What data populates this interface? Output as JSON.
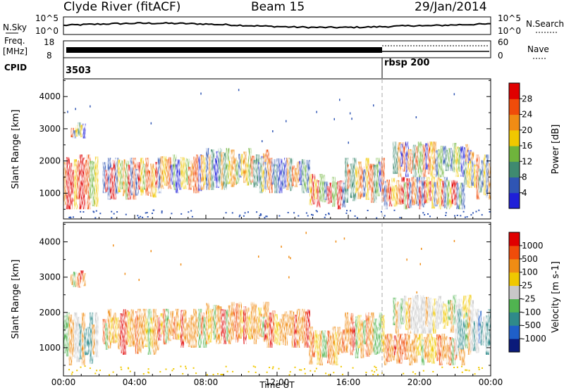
{
  "header": {
    "station": "Clyde River (fitACF)",
    "beam": "Beam 15",
    "date": "29/Jan/2014"
  },
  "status_panels": {
    "nsky_label": "N.Sky",
    "nsky_ticks": [
      "10^5",
      "10^0"
    ],
    "nsearch_label": "N.Search",
    "nsearch_ticks": [
      "10^5",
      "10^0"
    ],
    "freq_label": "Freq.",
    "freq_unit": "[MHz]",
    "freq_ticks": [
      "18",
      "8"
    ],
    "nave_label": "Nave",
    "nave_ticks": [
      "60",
      "0"
    ],
    "cpid_label": "CPID",
    "cpid_values": [
      {
        "time": 0,
        "label": "3503"
      },
      {
        "time": 18,
        "label": "rbsp 200"
      }
    ]
  },
  "chart_data": [
    {
      "type": "heatmap",
      "name": "power",
      "ylabel": "Slant Range [km]",
      "yticks": [
        1000,
        2000,
        3000,
        4000
      ],
      "ylim": [
        200,
        4550
      ],
      "xlim": [
        0,
        24
      ],
      "colorbar": {
        "label": "Power [dB]",
        "ticks": [
          "4",
          "8",
          "12",
          "16",
          "20",
          "24",
          "28"
        ],
        "colors": [
          "#1f1fd8",
          "#2f55b4",
          "#3f8a70",
          "#6fb43c",
          "#f0c800",
          "#f08c14",
          "#f04c0a",
          "#e00000"
        ]
      },
      "echo_regions": [
        {
          "t0": 0.0,
          "t1": 1.9,
          "r0": 500,
          "r1": 2200,
          "c": "red"
        },
        {
          "t0": 0.4,
          "t1": 1.2,
          "r0": 2700,
          "r1": 3200,
          "c": "mixed"
        },
        {
          "t0": 2.2,
          "t1": 5.3,
          "r0": 800,
          "r1": 2100,
          "c": "red"
        },
        {
          "t0": 5.3,
          "t1": 8.0,
          "r0": 1000,
          "r1": 2200,
          "c": "mixed"
        },
        {
          "t0": 8.0,
          "t1": 11.5,
          "r0": 1100,
          "r1": 2400,
          "c": "mixed"
        },
        {
          "t0": 11.0,
          "t1": 13.8,
          "r0": 1000,
          "r1": 2100,
          "c": "mixed"
        },
        {
          "t0": 13.8,
          "t1": 15.8,
          "r0": 500,
          "r1": 1600,
          "c": "red"
        },
        {
          "t0": 15.8,
          "t1": 18.0,
          "r0": 700,
          "r1": 2100,
          "c": "mixed"
        },
        {
          "t0": 18.0,
          "t1": 22.5,
          "r0": 500,
          "r1": 1500,
          "c": "red"
        },
        {
          "t0": 18.5,
          "t1": 23.0,
          "r0": 1500,
          "r1": 2600,
          "c": "mixed"
        },
        {
          "t0": 22.5,
          "t1": 24.0,
          "r0": 800,
          "r1": 2200,
          "c": "mixed"
        }
      ]
    },
    {
      "type": "heatmap",
      "name": "velocity",
      "ylabel": "Slant Range [km]",
      "yticks": [
        1000,
        2000,
        3000,
        4000
      ],
      "ylim": [
        200,
        4550
      ],
      "xlim": [
        0,
        24
      ],
      "xticks": [
        "00:00",
        "04:00",
        "08:00",
        "12:00",
        "16:00",
        "20:00",
        "00:00"
      ],
      "xlabel": "Time UT",
      "colorbar": {
        "label": "Velocity [m s-1]",
        "ticks": [
          "1000",
          "500",
          "100",
          "25",
          "-25",
          "-100",
          "-500",
          "-1000"
        ],
        "colors": [
          "#0a1a7a",
          "#1f5fc8",
          "#2f8a8a",
          "#50b450",
          "#c8c8c8",
          "#f0c800",
          "#f08c14",
          "#f04c0a",
          "#e00000"
        ]
      },
      "echo_regions": [
        {
          "t0": 0.0,
          "t1": 1.9,
          "r0": 500,
          "r1": 2000,
          "c": "green"
        },
        {
          "t0": 0.4,
          "t1": 1.2,
          "r0": 2700,
          "r1": 3200,
          "c": "orange"
        },
        {
          "t0": 2.2,
          "t1": 5.3,
          "r0": 800,
          "r1": 2100,
          "c": "orange"
        },
        {
          "t0": 5.3,
          "t1": 8.0,
          "r0": 1000,
          "r1": 2100,
          "c": "orange"
        },
        {
          "t0": 8.0,
          "t1": 11.5,
          "r0": 1100,
          "r1": 2300,
          "c": "orange"
        },
        {
          "t0": 11.0,
          "t1": 13.8,
          "r0": 1000,
          "r1": 2100,
          "c": "orange"
        },
        {
          "t0": 13.8,
          "t1": 15.8,
          "r0": 500,
          "r1": 1600,
          "c": "orange"
        },
        {
          "t0": 15.8,
          "t1": 18.0,
          "r0": 700,
          "r1": 2000,
          "c": "orange"
        },
        {
          "t0": 18.0,
          "t1": 22.5,
          "r0": 500,
          "r1": 1400,
          "c": "orange"
        },
        {
          "t0": 18.5,
          "t1": 23.0,
          "r0": 1400,
          "r1": 2500,
          "c": "gray"
        },
        {
          "t0": 22.0,
          "t1": 24.0,
          "r0": 800,
          "r1": 2100,
          "c": "green"
        }
      ]
    }
  ]
}
